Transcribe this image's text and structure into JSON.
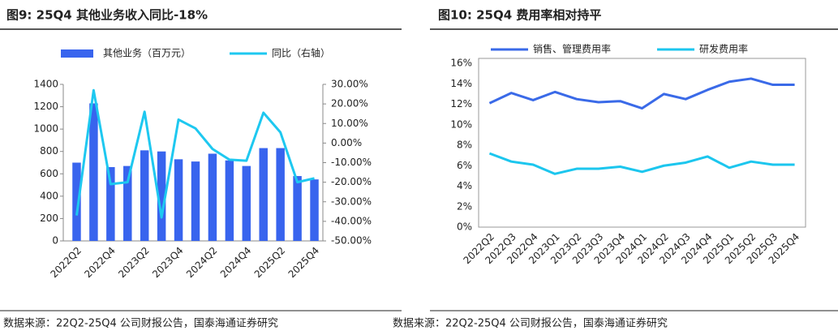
{
  "chart_data": [
    {
      "type": "bar",
      "title": "图9:  25Q4 其他业务收入同比-18%",
      "source": "数据来源：22Q2-25Q4 公司财报公告，国泰海通证券研究",
      "categories": [
        "2022Q2",
        null,
        "2022Q4",
        null,
        "2023Q2",
        null,
        "2023Q4",
        null,
        "2024Q2",
        null,
        "2024Q4",
        null,
        "2025Q2",
        null,
        "2025Q4"
      ],
      "series": [
        {
          "name": "其他业务（百万元）",
          "color": "#3864ee",
          "type": "bar",
          "values": [
            700,
            1230,
            660,
            670,
            810,
            800,
            730,
            710,
            780,
            720,
            670,
            830,
            830,
            580,
            550
          ]
        },
        {
          "name": "同比（右轴）",
          "color": "#1ec8f0",
          "type": "line",
          "axis": "y2",
          "values": [
            -37,
            27,
            -21,
            -20,
            16,
            -38,
            12,
            7.5,
            -3,
            -8.5,
            -9,
            15.5,
            5.5,
            -20,
            -18
          ]
        }
      ],
      "ylim": [
        0,
        1400
      ],
      "yticks": [
        0,
        200,
        400,
        600,
        800,
        1000,
        1200,
        1400
      ],
      "y2lim": [
        -50,
        30
      ],
      "y2ticks": [
        {
          "value": -50,
          "label": "-50.00%"
        },
        {
          "value": -40,
          "label": "-40.00%"
        },
        {
          "value": -30,
          "label": "-30.00%"
        },
        {
          "value": -20,
          "label": "-20.00%"
        },
        {
          "value": -10,
          "label": "-10.00%"
        },
        {
          "value": 0,
          "label": "0.00%"
        },
        {
          "value": 10,
          "label": "10.00%"
        },
        {
          "value": 20,
          "label": "20.00%"
        },
        {
          "value": 30,
          "label": "30.00%"
        }
      ]
    },
    {
      "type": "line",
      "title": "图10:  25Q4 费用率相对持平",
      "source": "数据来源：22Q2-25Q4 公司财报公告，国泰海通证券研究",
      "categories": [
        "2022Q2",
        "2022Q3",
        "2022Q4",
        "2023Q1",
        "2023Q2",
        "2023Q3",
        "2023Q4",
        "2024Q1",
        "2024Q2",
        "2024Q3",
        "2024Q4",
        "2025Q1",
        "2025Q2",
        "2025Q3",
        "2025Q4"
      ],
      "series": [
        {
          "name": "销售、管理费用率",
          "color": "#3a6ae8",
          "values": [
            12.1,
            13.1,
            12.4,
            13.2,
            12.5,
            12.2,
            12.3,
            11.6,
            13.0,
            12.5,
            13.4,
            14.2,
            14.5,
            13.9,
            13.9
          ]
        },
        {
          "name": "研发费用率",
          "color": "#1cc6ee",
          "values": [
            7.2,
            6.4,
            6.1,
            5.2,
            5.7,
            5.7,
            5.9,
            5.4,
            6.0,
            6.3,
            6.9,
            5.8,
            6.4,
            6.1,
            6.1
          ]
        }
      ],
      "ylim": [
        0,
        16
      ],
      "yticks": [
        {
          "value": 0,
          "label": "0%"
        },
        {
          "value": 2,
          "label": "2%"
        },
        {
          "value": 4,
          "label": "4%"
        },
        {
          "value": 6,
          "label": "6%"
        },
        {
          "value": 8,
          "label": "8%"
        },
        {
          "value": 10,
          "label": "10%"
        },
        {
          "value": 12,
          "label": "12%"
        },
        {
          "value": 14,
          "label": "14%"
        },
        {
          "value": 16,
          "label": "16%"
        }
      ]
    }
  ]
}
